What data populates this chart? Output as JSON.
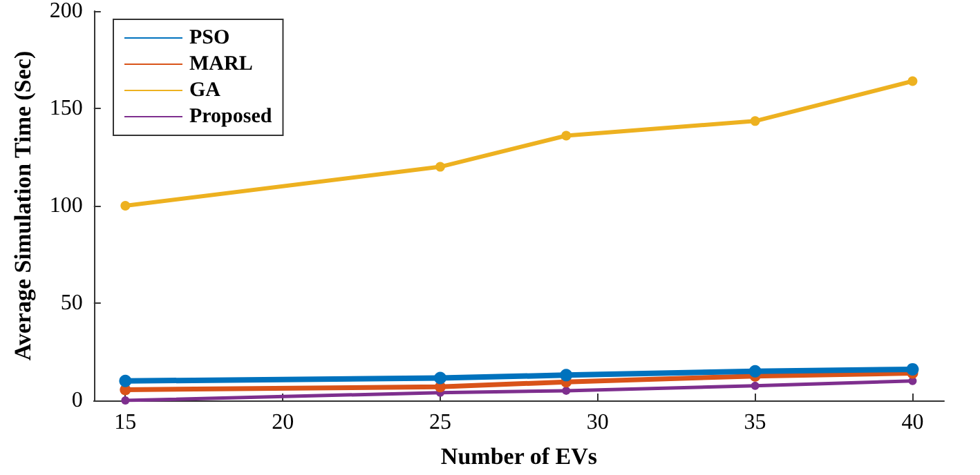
{
  "chart_data": {
    "type": "line",
    "xlabel": "Number of EVs",
    "ylabel": "Average Simulation Time (Sec)",
    "x": [
      15,
      25,
      29,
      35,
      40
    ],
    "series": [
      {
        "name": "PSO",
        "color": "#0072bd",
        "values": [
          10,
          11.5,
          13,
          15,
          16
        ]
      },
      {
        "name": "MARL",
        "color": "#d95319",
        "values": [
          5.5,
          7,
          9.5,
          12.5,
          14
        ]
      },
      {
        "name": "GA",
        "color": "#edb120",
        "values": [
          100,
          120,
          136,
          143.5,
          164
        ]
      },
      {
        "name": "Proposed",
        "color": "#7e2f8e",
        "values": [
          0,
          4,
          5,
          7.5,
          10
        ]
      }
    ],
    "xlim": [
      14,
      41
    ],
    "xticks": [
      15,
      20,
      25,
      30,
      35,
      40
    ],
    "ylim": [
      0,
      200
    ],
    "yticks": [
      0,
      50,
      100,
      150,
      200
    ],
    "grid": false,
    "legend": "top left",
    "marker": "circle",
    "line_style": "solid"
  }
}
